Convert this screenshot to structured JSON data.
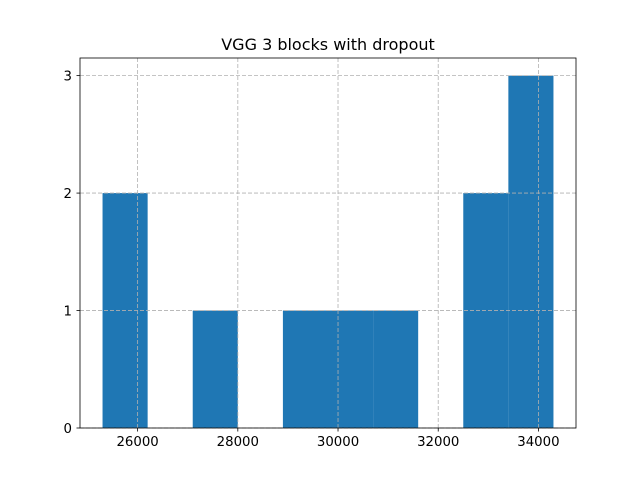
{
  "chart_data": {
    "type": "bar",
    "title": "VGG 3 blocks with dropout",
    "xlabel": "",
    "ylabel": "",
    "bin_edges": [
      25300,
      26200,
      27100,
      28000,
      28900,
      29800,
      30700,
      31600,
      32500,
      33400,
      34300
    ],
    "values": [
      2,
      0,
      1,
      0,
      1,
      1,
      1,
      0,
      2,
      3
    ],
    "xlim": [
      24850,
      34750
    ],
    "ylim": [
      0,
      3.15
    ],
    "x_ticks": [
      26000,
      28000,
      30000,
      32000,
      34000
    ],
    "y_ticks": [
      0,
      1,
      2,
      3
    ],
    "grid": true,
    "bar_color": "#1f77b4"
  }
}
